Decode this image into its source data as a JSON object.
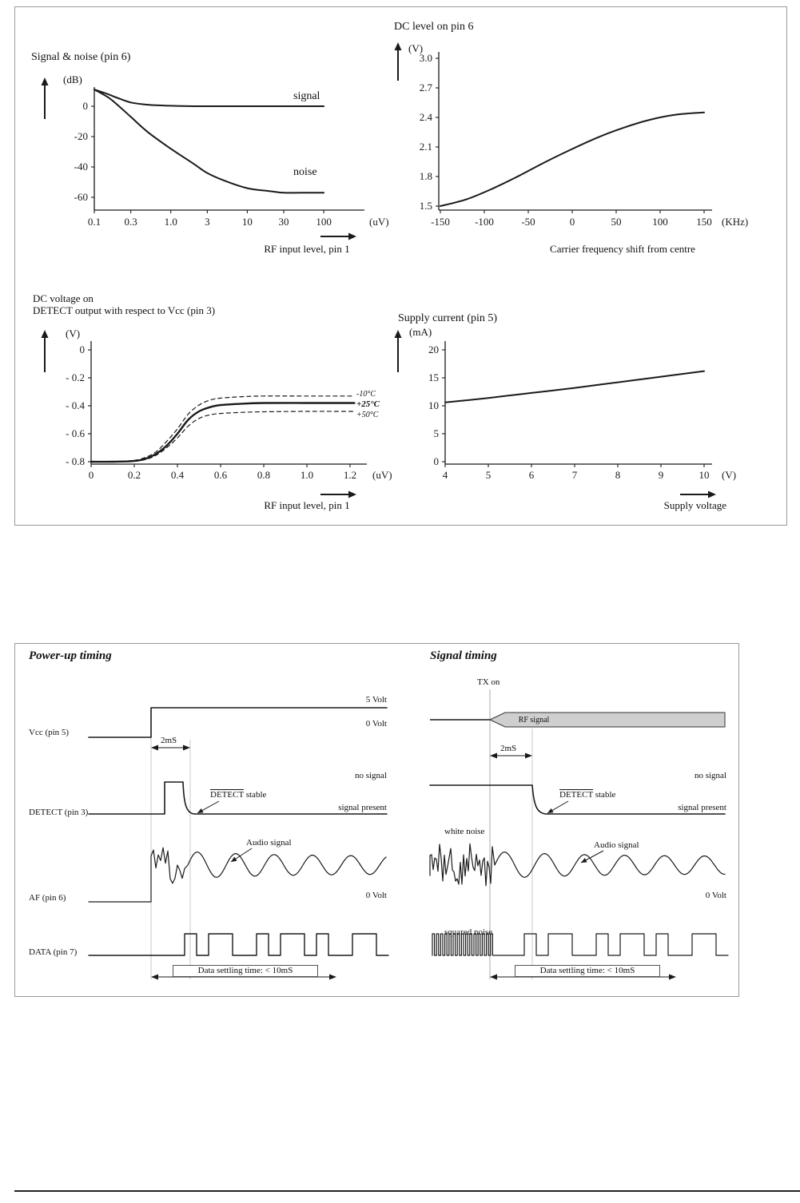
{
  "chart_data": [
    {
      "type": "line",
      "title": "Signal & noise (pin 6)",
      "y_unit": "(dB)",
      "x_unit": "(uV)",
      "xlabel": "RF input level, pin 1",
      "x_scale": "log",
      "x_ticks": [
        0.1,
        0.3,
        1.0,
        3,
        10,
        30,
        100
      ],
      "x_tick_labels": [
        "0.1",
        "0.3",
        "1.0",
        "3",
        "10",
        "30",
        "100"
      ],
      "y_ticks": [
        0,
        -20,
        -40,
        -60
      ],
      "ylim": [
        -68,
        12
      ],
      "series": [
        {
          "name": "signal",
          "style": "solid",
          "points": [
            [
              0.1,
              11
            ],
            [
              0.15,
              8
            ],
            [
              0.2,
              5.5
            ],
            [
              0.3,
              2.5
            ],
            [
              0.5,
              1
            ],
            [
              1,
              0.3
            ],
            [
              2,
              0
            ],
            [
              5,
              0
            ],
            [
              10,
              0
            ],
            [
              30,
              0
            ],
            [
              100,
              0
            ]
          ]
        },
        {
          "name": "noise",
          "style": "solid",
          "points": [
            [
              0.1,
              11
            ],
            [
              0.15,
              6
            ],
            [
              0.2,
              1
            ],
            [
              0.3,
              -7
            ],
            [
              0.5,
              -17
            ],
            [
              1,
              -28
            ],
            [
              2,
              -38
            ],
            [
              3,
              -44
            ],
            [
              5,
              -49
            ],
            [
              10,
              -54
            ],
            [
              20,
              -56
            ],
            [
              30,
              -57
            ],
            [
              50,
              -57
            ],
            [
              100,
              -57
            ]
          ]
        }
      ]
    },
    {
      "type": "line",
      "title": "DC level on pin 6",
      "y_unit": "(V)",
      "x_unit": "(KHz)",
      "xlabel": "Carrier frequency shift from centre",
      "x_ticks": [
        -150,
        -100,
        -50,
        0,
        50,
        100,
        150
      ],
      "y_ticks": [
        3.0,
        2.7,
        2.4,
        2.1,
        1.8,
        1.5
      ],
      "y_tick_labels": [
        "3.0",
        "2.7",
        "2.4",
        "2.1",
        "1.8",
        "1.5"
      ],
      "ylim": [
        1.5,
        3.0
      ],
      "series": [
        {
          "name": "dc-level",
          "style": "solid",
          "points": [
            [
              -150,
              1.5
            ],
            [
              -120,
              1.57
            ],
            [
              -90,
              1.68
            ],
            [
              -60,
              1.81
            ],
            [
              -30,
              1.95
            ],
            [
              0,
              2.08
            ],
            [
              30,
              2.2
            ],
            [
              60,
              2.3
            ],
            [
              90,
              2.38
            ],
            [
              120,
              2.43
            ],
            [
              150,
              2.45
            ]
          ]
        }
      ]
    },
    {
      "type": "line",
      "title": "DC voltage on DETECT output with respect to Vcc (pin 3)",
      "title_line1": "DC voltage on",
      "title_line2": "DETECT output with respect to Vcc (pin 3)",
      "y_unit": "(V)",
      "x_unit": "(uV)",
      "xlabel": "RF input level, pin 1",
      "x_ticks": [
        0,
        0.2,
        0.4,
        0.6,
        0.8,
        1.0,
        1.2
      ],
      "x_tick_labels": [
        "0",
        "0.2",
        "0.4",
        "0.6",
        "0.8",
        "1.0",
        "1.2"
      ],
      "y_ticks": [
        0,
        -0.2,
        -0.4,
        -0.6,
        -0.8
      ],
      "y_tick_labels": [
        "0",
        "- 0.2",
        "- 0.4",
        "- 0.6",
        "- 0.8"
      ],
      "series": [
        {
          "name": "-10°C",
          "style": "dashed",
          "points": [
            [
              0,
              -0.8
            ],
            [
              0.1,
              -0.8
            ],
            [
              0.2,
              -0.79
            ],
            [
              0.25,
              -0.77
            ],
            [
              0.3,
              -0.73
            ],
            [
              0.35,
              -0.655
            ],
            [
              0.4,
              -0.565
            ],
            [
              0.45,
              -0.46
            ],
            [
              0.5,
              -0.395
            ],
            [
              0.55,
              -0.36
            ],
            [
              0.6,
              -0.345
            ],
            [
              0.7,
              -0.335
            ],
            [
              0.8,
              -0.33
            ],
            [
              1.0,
              -0.33
            ],
            [
              1.22,
              -0.33
            ]
          ]
        },
        {
          "name": "+25°C",
          "style": "solid",
          "points": [
            [
              0,
              -0.8
            ],
            [
              0.1,
              -0.8
            ],
            [
              0.2,
              -0.795
            ],
            [
              0.25,
              -0.78
            ],
            [
              0.3,
              -0.745
            ],
            [
              0.35,
              -0.685
            ],
            [
              0.4,
              -0.6
            ],
            [
              0.45,
              -0.5
            ],
            [
              0.5,
              -0.44
            ],
            [
              0.55,
              -0.41
            ],
            [
              0.6,
              -0.395
            ],
            [
              0.7,
              -0.385
            ],
            [
              0.8,
              -0.38
            ],
            [
              1.0,
              -0.38
            ],
            [
              1.22,
              -0.38
            ]
          ]
        },
        {
          "name": "+50°C",
          "style": "dashed",
          "points": [
            [
              0,
              -0.8
            ],
            [
              0.1,
              -0.8
            ],
            [
              0.2,
              -0.795
            ],
            [
              0.25,
              -0.785
            ],
            [
              0.3,
              -0.755
            ],
            [
              0.35,
              -0.7
            ],
            [
              0.4,
              -0.63
            ],
            [
              0.45,
              -0.545
            ],
            [
              0.5,
              -0.49
            ],
            [
              0.55,
              -0.465
            ],
            [
              0.6,
              -0.455
            ],
            [
              0.7,
              -0.447
            ],
            [
              0.8,
              -0.443
            ],
            [
              1.0,
              -0.44
            ],
            [
              1.22,
              -0.44
            ]
          ]
        }
      ]
    },
    {
      "type": "line",
      "title": "Supply current (pin 5)",
      "y_unit": "(mA)",
      "x_unit": "(V)",
      "xlabel": "Supply voltage",
      "x_ticks": [
        4,
        5,
        6,
        7,
        8,
        9,
        10
      ],
      "y_ticks": [
        20,
        15,
        10,
        5,
        0
      ],
      "ylim": [
        0,
        22
      ],
      "series": [
        {
          "name": "supply-current",
          "style": "solid",
          "points": [
            [
              4,
              10.6
            ],
            [
              5,
              11.4
            ],
            [
              6,
              12.3
            ],
            [
              7,
              13.2
            ],
            [
              8,
              14.2
            ],
            [
              9,
              15.2
            ],
            [
              10,
              16.2
            ]
          ]
        }
      ]
    }
  ],
  "timing": {
    "left": {
      "title": "Power-up timing",
      "channels": [
        "Vcc (pin 5)",
        "DETECT (pin 3)",
        "AF (pin 6)",
        "DATA (pin 7)"
      ],
      "labels": {
        "v5": "5 Volt",
        "v0": "0 Volt",
        "ms2": "2mS",
        "no_signal": "no signal",
        "signal_present": "signal present",
        "detect_word": "DETECT",
        "stable_word": "stable",
        "audio": "Audio signal",
        "af_zero": "0 Volt",
        "settling": "Data settling time: < 10mS"
      },
      "data_bits": [
        1,
        0,
        1,
        1,
        0,
        0,
        1,
        0,
        1,
        1,
        0,
        1,
        0,
        0,
        1,
        1,
        0
      ]
    },
    "right": {
      "title": "Signal timing",
      "labels": {
        "tx_on": "TX on",
        "rf_signal": "RF signal",
        "ms2": "2mS",
        "no_signal": "no signal",
        "signal_present": "signal present",
        "detect_word": "DETECT",
        "stable_word": "stable",
        "white_noise": "white noise",
        "audio": "Audio signal",
        "af_zero": "0 Volt",
        "squared_noise": "squared noise",
        "settling": "Data settling time: < 10mS"
      },
      "data_bits": [
        1,
        0,
        1,
        1,
        0,
        0,
        1,
        0,
        1,
        1,
        0,
        1,
        0,
        0,
        1,
        1,
        0
      ]
    },
    "colors": {
      "line": "#1a1a1a",
      "guide": "#c9c9c9",
      "rf_band_fill": "#cfcfcf"
    }
  }
}
